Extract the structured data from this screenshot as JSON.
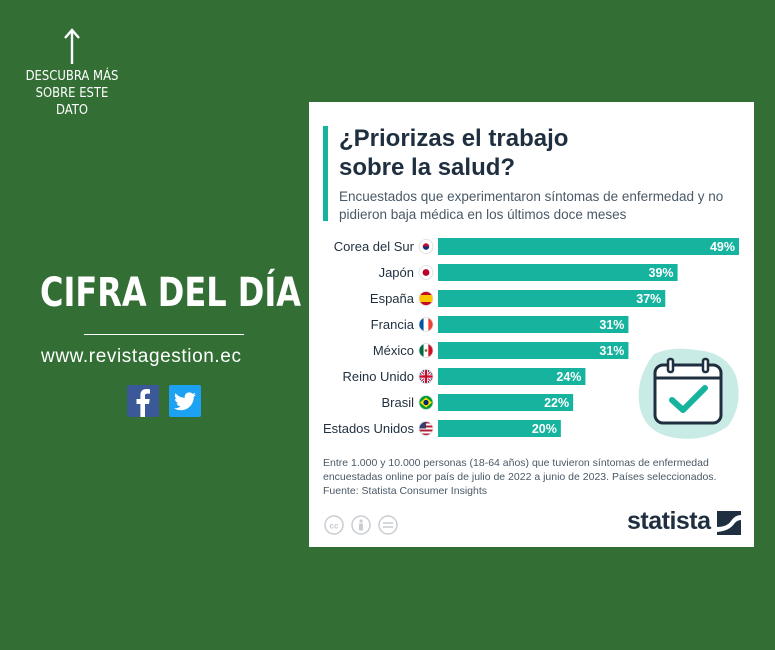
{
  "left_panel": {
    "cta": [
      "DESCUBRA MÁS",
      "SOBRE ESTE",
      "DATO"
    ],
    "headline": "CIFRA DEL DÍA",
    "website": "www.revistagestion.ec",
    "social": [
      "facebook-icon",
      "twitter-icon"
    ]
  },
  "infographic": {
    "title_line1": "¿Priorizas el trabajo",
    "title_line2": "sobre la salud?",
    "subtitle": "Encuestados que experimentaron síntomas de enfermedad y no pidieron baja médica en los últimos doce meses",
    "notes_line1": "Entre 1.000 y 10.000 personas (18-64 años) que tuvieron síntomas de enfermedad encuestadas online por país de julio de 2022 a junio de 2023. Países seleccionados.",
    "source": "Fuente: Statista Consumer Insights",
    "brand": "statista"
  },
  "colors": {
    "background": "#336e35",
    "bar": "#16b39f",
    "text": "#1f2f3f"
  },
  "chart_data": {
    "type": "bar",
    "orientation": "horizontal",
    "categories": [
      "Corea del Sur",
      "Japón",
      "España",
      "Francia",
      "México",
      "Reino Unido",
      "Brasil",
      "Estados Unidos"
    ],
    "values": [
      49,
      39,
      37,
      31,
      31,
      24,
      22,
      20
    ],
    "value_labels": [
      "49%",
      "39%",
      "37%",
      "31%",
      "31%",
      "24%",
      "22%",
      "20%"
    ],
    "flags": [
      "south-korea-flag-icon",
      "japan-flag-icon",
      "spain-flag-icon",
      "france-flag-icon",
      "mexico-flag-icon",
      "uk-flag-icon",
      "brazil-flag-icon",
      "usa-flag-icon"
    ],
    "xlim": [
      0,
      49
    ],
    "grid": false
  }
}
